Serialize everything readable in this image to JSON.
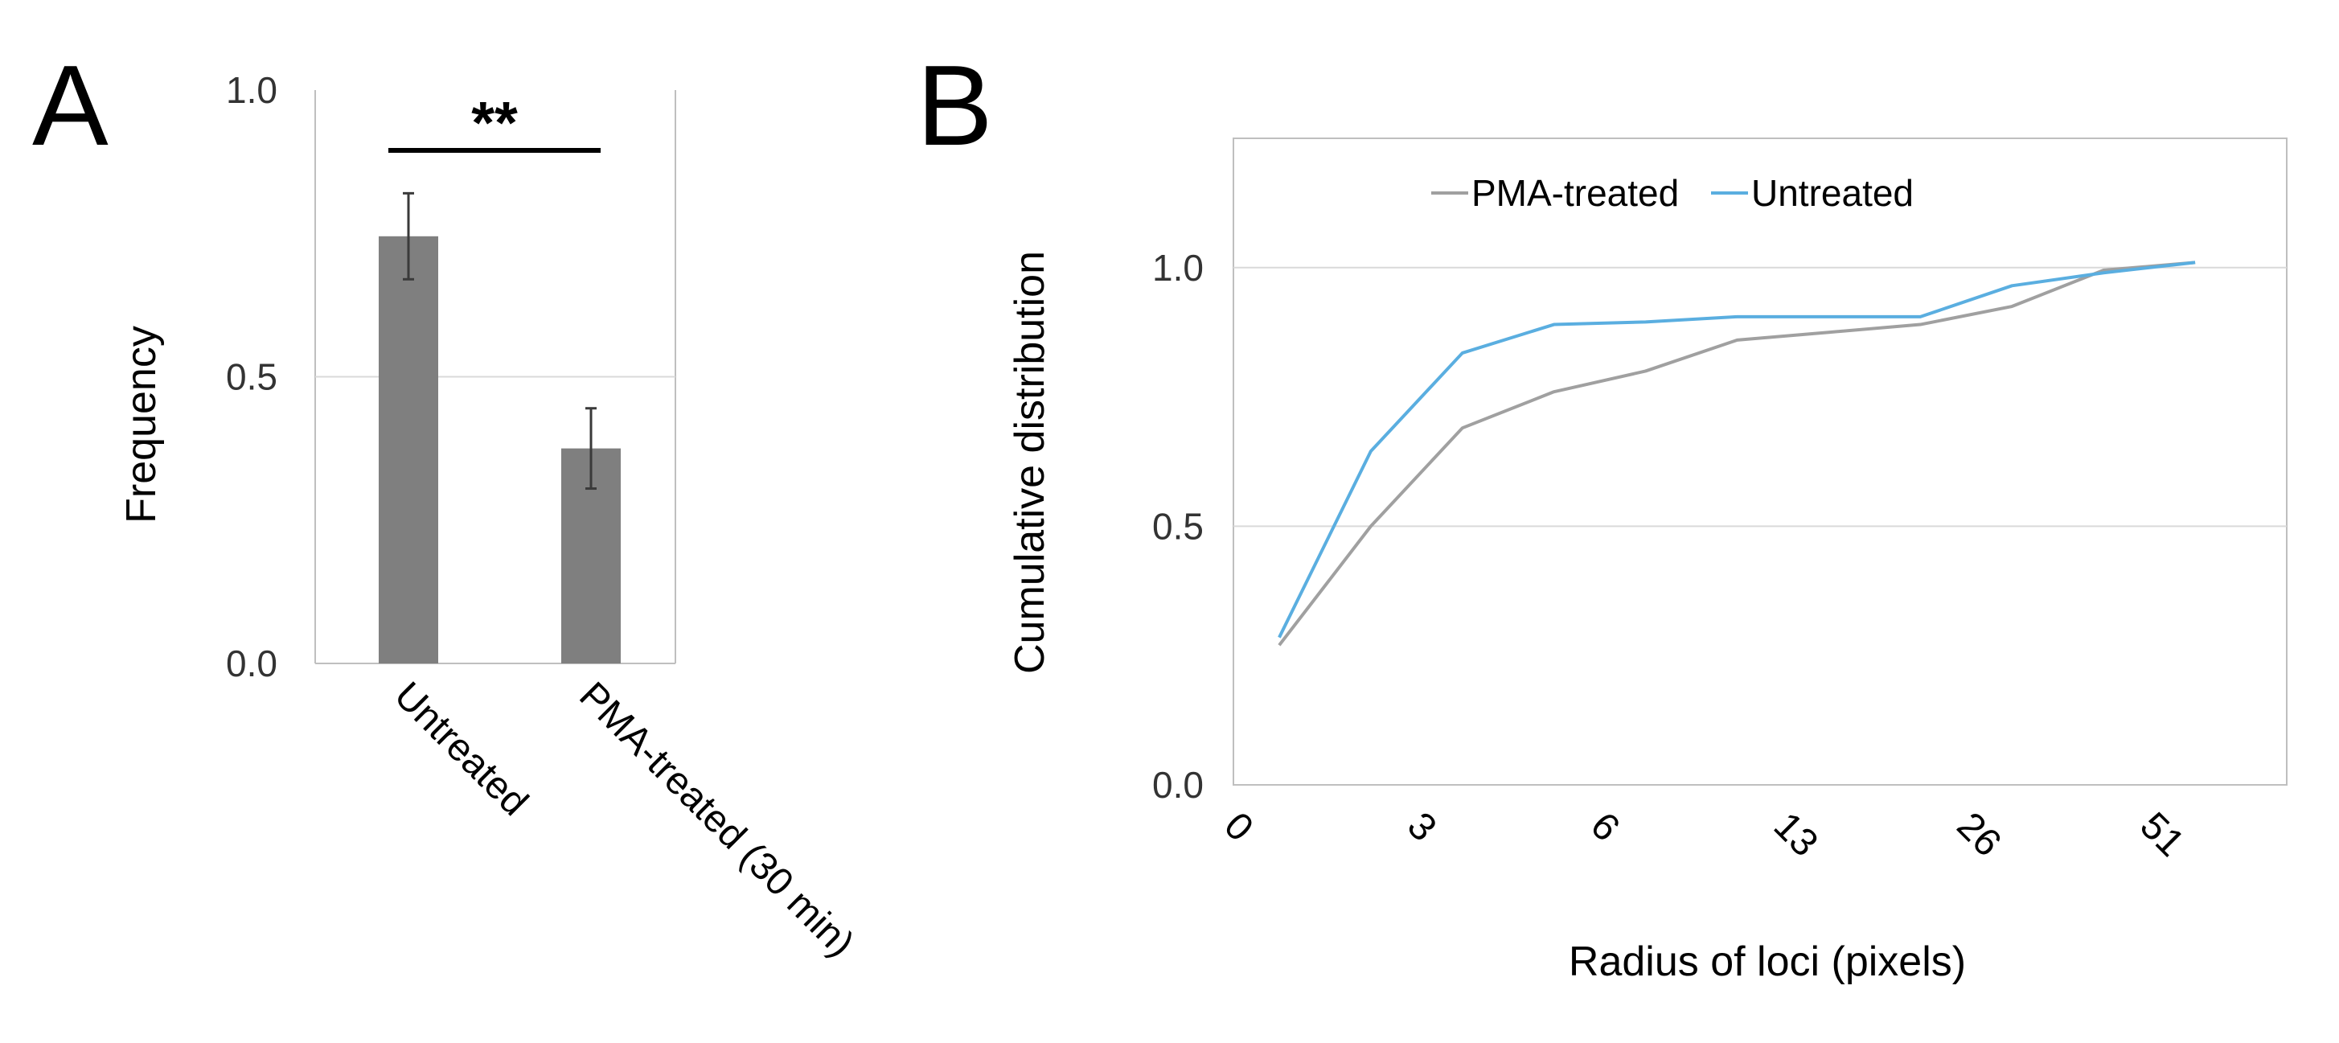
{
  "panel_a_label": "A",
  "panel_b_label": "B",
  "colors": {
    "bar": "#7f7f7f",
    "error": "#3a3a3a",
    "grid": "#d9d9d9",
    "frame": "#bfbfbf",
    "pma_line": "#a0a0a0",
    "untreated_line": "#5aaee0",
    "text": "#000000",
    "tick_text": "#333333"
  },
  "chart_data": [
    {
      "type": "bar",
      "panel": "A",
      "title": "",
      "xlabel": "",
      "ylabel": "Frequency",
      "ylim": [
        0,
        1.0
      ],
      "yticks": [
        "0.0",
        "0.5",
        "1.0"
      ],
      "ytick_values": [
        0,
        0.5,
        1.0
      ],
      "grid": true,
      "categories": [
        "Untreated",
        "PMA-treated (30 min)"
      ],
      "values": [
        0.745,
        0.375
      ],
      "errors": [
        0.075,
        0.07
      ],
      "significance": {
        "label": "**",
        "between": [
          0,
          1
        ]
      }
    },
    {
      "type": "line",
      "panel": "B",
      "title": "",
      "xlabel": "Radius of loci (pixels)",
      "ylabel": "Cumulative distribution",
      "ylim": [
        0,
        1.25
      ],
      "yticks": [
        "0.0",
        "0.5",
        "1.0"
      ],
      "ytick_values": [
        0,
        0.5,
        1.0
      ],
      "x_tick_labels": [
        "0",
        "3",
        "6",
        "13",
        "26",
        "51"
      ],
      "x_tick_positions": [
        0,
        2,
        4,
        6,
        8,
        10
      ],
      "grid": true,
      "legend_position": "top",
      "series": [
        {
          "name": "PMA-treated",
          "color_key": "pma_line",
          "x": [
            0.5,
            1.5,
            2.5,
            3.5,
            4.5,
            5.5,
            6.5,
            7.5,
            8.5,
            9.5,
            10.5
          ],
          "values": [
            0.27,
            0.5,
            0.69,
            0.76,
            0.8,
            0.86,
            0.875,
            0.89,
            0.925,
            0.995,
            1.01
          ]
        },
        {
          "name": "Untreated",
          "color_key": "untreated_line",
          "x": [
            0.5,
            1.5,
            2.5,
            3.5,
            4.5,
            5.5,
            6.5,
            7.5,
            8.5,
            9.5,
            10.5
          ],
          "values": [
            0.285,
            0.645,
            0.835,
            0.89,
            0.895,
            0.905,
            0.905,
            0.905,
            0.965,
            0.99,
            1.01
          ]
        }
      ]
    }
  ]
}
